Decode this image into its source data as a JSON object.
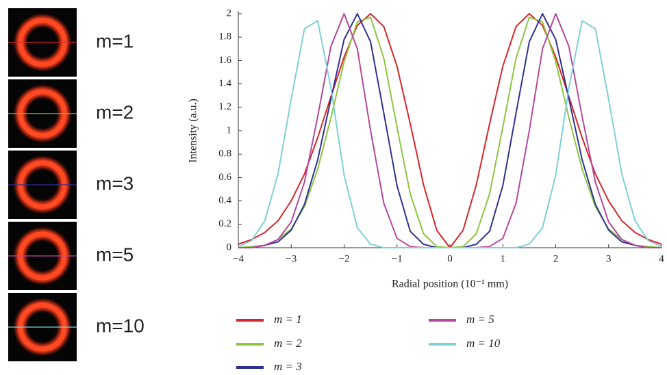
{
  "panels": [
    {
      "label": "m=1"
    },
    {
      "label": "m=2"
    },
    {
      "label": "m=3"
    },
    {
      "label": "m=5"
    },
    {
      "label": "m=10"
    }
  ],
  "chart_data": {
    "type": "line",
    "xlabel": "Radial position (10⁻¹ mm)",
    "ylabel": "Intensity (a.u.)",
    "x": [
      -4,
      -3.75,
      -3.5,
      -3.25,
      -3,
      -2.75,
      -2.5,
      -2.25,
      -2,
      -1.75,
      -1.5,
      -1.25,
      -1,
      -0.75,
      -0.5,
      -0.25,
      0,
      0.25,
      0.5,
      0.75,
      1,
      1.25,
      1.5,
      1.75,
      2,
      2.25,
      2.5,
      2.75,
      3,
      3.25,
      3.5,
      3.75,
      4
    ],
    "xlim": [
      -4,
      4
    ],
    "xticks": [
      {
        "value": -4,
        "label": "−4"
      },
      {
        "value": -3,
        "label": "−3"
      },
      {
        "value": -2,
        "label": "−2"
      },
      {
        "value": -1,
        "label": "−1"
      },
      0,
      1,
      2,
      3,
      4
    ],
    "ylim": [
      0,
      2
    ],
    "yticks": [
      0,
      0.2,
      0.4,
      0.6,
      0.8,
      1,
      1.2,
      1.4,
      1.6,
      1.8,
      2
    ],
    "series": [
      {
        "name": "m = 1",
        "color": "#d7262b",
        "values": [
          0.03,
          0.07,
          0.13,
          0.23,
          0.4,
          0.63,
          0.94,
          1.29,
          1.63,
          1.9,
          2,
          1.89,
          1.55,
          1.06,
          0.54,
          0.15,
          0,
          0.15,
          0.54,
          1.06,
          1.55,
          1.89,
          2,
          1.9,
          1.63,
          1.29,
          0.94,
          0.63,
          0.4,
          0.23,
          0.13,
          0.07,
          0.03
        ]
      },
      {
        "name": "m = 2",
        "color": "#8cc63f",
        "values": [
          0,
          0.01,
          0.02,
          0.07,
          0.16,
          0.35,
          0.67,
          1.11,
          1.59,
          1.93,
          1.97,
          1.62,
          1.03,
          0.46,
          0.12,
          0.01,
          0,
          0.01,
          0.12,
          0.46,
          1.03,
          1.62,
          1.97,
          1.93,
          1.59,
          1.11,
          0.67,
          0.35,
          0.16,
          0.07,
          0.02,
          0.01,
          0
        ]
      },
      {
        "name": "m = 3",
        "color": "#2e3192",
        "values": [
          0,
          0,
          0.02,
          0.05,
          0.15,
          0.37,
          0.75,
          1.27,
          1.78,
          2,
          1.76,
          1.15,
          0.53,
          0.14,
          0.03,
          0,
          0,
          0,
          0.03,
          0.14,
          0.53,
          1.15,
          1.76,
          2,
          1.78,
          1.27,
          0.75,
          0.37,
          0.15,
          0.05,
          0.02,
          0,
          0
        ]
      },
      {
        "name": "m = 5",
        "color": "#b5479b",
        "values": [
          0,
          0,
          0.02,
          0.07,
          0.22,
          0.56,
          1.12,
          1.72,
          2,
          1.7,
          1,
          0.38,
          0.08,
          0.01,
          0,
          0,
          0,
          0,
          0,
          0.01,
          0.08,
          0.38,
          1,
          1.7,
          2,
          1.72,
          1.12,
          0.56,
          0.22,
          0.07,
          0.02,
          0,
          0
        ]
      },
      {
        "name": "m = 10",
        "color": "#7fd0d8",
        "values": [
          0.01,
          0.06,
          0.23,
          0.63,
          1.27,
          1.87,
          1.94,
          1.37,
          0.62,
          0.17,
          0.03,
          0,
          0,
          0,
          0,
          0,
          0,
          0,
          0,
          0,
          0,
          0,
          0.03,
          0.17,
          0.62,
          1.37,
          1.94,
          1.87,
          1.27,
          0.63,
          0.23,
          0.06,
          0.01
        ]
      }
    ]
  }
}
